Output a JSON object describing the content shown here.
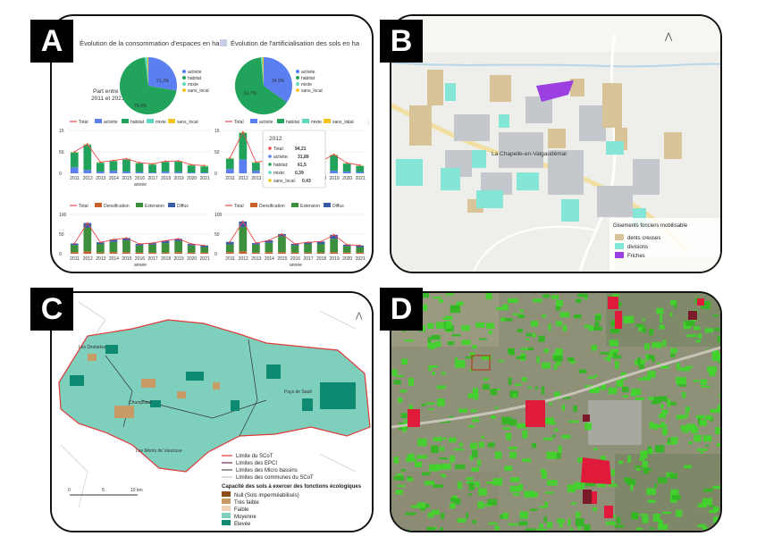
{
  "labels": {
    "a": "A",
    "b": "B",
    "c": "C",
    "d": "D"
  },
  "panel_a": {
    "title_left": "Évolution de la consommation d'espaces en ha",
    "title_right": "Évolution de l'artificialisation des sols en ha",
    "period_label_1": "Part entre",
    "period_label_2": "2011 et 2021",
    "pie_left_legend": [
      "activite",
      "habitat",
      "mixte",
      "sans_local"
    ],
    "pie_right_legend": [
      "activite",
      "habitat",
      "mixte",
      "sans_local"
    ],
    "pie_left_pct": [
      "21,3%",
      "76,4%"
    ],
    "pie_right_pct": [
      "34,9%",
      "61,7%"
    ],
    "series_legend_1": [
      "Total",
      "activite",
      "habitat",
      "mixte",
      "sans_local"
    ],
    "series_legend_2": [
      "Total",
      "Densification",
      "Extension",
      "Diffus"
    ],
    "years": [
      "2011",
      "2012",
      "2013",
      "2014",
      "2015",
      "2016",
      "2017",
      "2018",
      "2019",
      "2020",
      "2021"
    ],
    "axis_label": "année",
    "tooltip": {
      "year": "2012",
      "rows": [
        {
          "label": "Total:",
          "value": "94,21"
        },
        {
          "label": "activite:",
          "value": "31,89"
        },
        {
          "label": "habitat:",
          "value": "61,5"
        },
        {
          "label": "mixte:",
          "value": "0,39"
        },
        {
          "label": "sans_local:",
          "value": "0,43"
        }
      ]
    },
    "y_ticks_top": [
      "15",
      "50",
      "0"
    ],
    "y_ticks_bottom": [
      "100",
      "50",
      "0"
    ],
    "colors": {
      "activite": "#5b7ff0",
      "habitat": "#21a35b",
      "mixte": "#5fd8c0",
      "sans_local": "#f2c41c",
      "total": "#e84a4a",
      "densification": "#c8602a",
      "extension": "#3c8f3c",
      "diffus": "#3b5ba8"
    }
  },
  "panel_b": {
    "place_name": "La Chapelle-en-Valgaudémar",
    "legend_title": "Gisements fonciers mobilisable",
    "legend_items": [
      {
        "label": "dents creuses",
        "color": "#d9c49a"
      },
      {
        "label": "divisions",
        "color": "#84e6d6"
      },
      {
        "label": "Friches",
        "color": "#9b3fe0"
      }
    ]
  },
  "panel_c": {
    "place_labels": [
      "Les Deslades",
      "Champsaur",
      "Les Monts de Vaucluse",
      "Pays de Sault"
    ],
    "legend_lines": [
      {
        "label": "Limite du SCoT",
        "color": "#e03a3a"
      },
      {
        "label": "Limites des EPCI",
        "color": "#7a2a5a"
      },
      {
        "label": "Limites des Micro bassins",
        "color": "#333333"
      },
      {
        "label": "Limites des communes du SCoT",
        "color": "#bbbbbb"
      }
    ],
    "legend_title": "Capacité des sols à exercer des fonctions écologiques",
    "legend_classes": [
      {
        "label": "Null (Sols imperméabilisés)",
        "color": "#8c4e1a"
      },
      {
        "label": "Très faible",
        "color": "#c89a66"
      },
      {
        "label": "Faible",
        "color": "#f0d2b6"
      },
      {
        "label": "Moyenne",
        "color": "#7ecfbc"
      },
      {
        "label": "Elevée",
        "color": "#0e8a72"
      }
    ],
    "scale_labels": [
      "0",
      "5",
      "10 km"
    ]
  }
}
